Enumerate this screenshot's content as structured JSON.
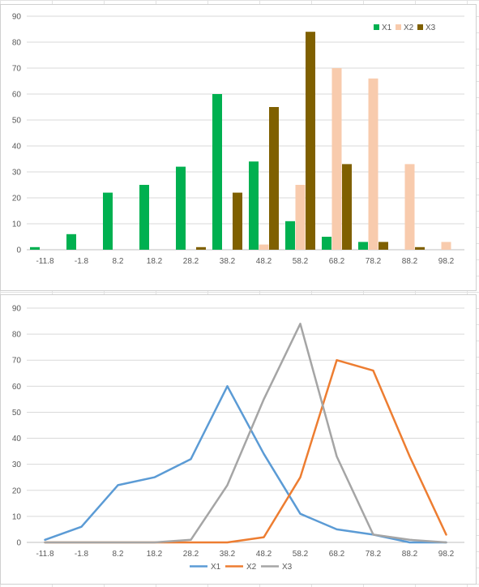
{
  "chart_data": [
    {
      "type": "bar",
      "categories": [
        "-11.8",
        "-1.8",
        "8.2",
        "18.2",
        "28.2",
        "38.2",
        "48.2",
        "58.2",
        "68.2",
        "78.2",
        "88.2",
        "98.2"
      ],
      "series": [
        {
          "name": "X1",
          "color": "#00b050",
          "values": [
            1,
            6,
            22,
            25,
            32,
            60,
            34,
            11,
            5,
            3,
            0,
            0
          ]
        },
        {
          "name": "X2",
          "color": "#f8cbad",
          "values": [
            0,
            0,
            0,
            0,
            0,
            0,
            2,
            25,
            70,
            66,
            33,
            3
          ]
        },
        {
          "name": "X3",
          "color": "#7f6000",
          "values": [
            0,
            0,
            0,
            0,
            1,
            22,
            55,
            84,
            33,
            3,
            1,
            0
          ]
        }
      ],
      "ylim": [
        0,
        90
      ],
      "yticks": [
        0,
        10,
        20,
        30,
        40,
        50,
        60,
        70,
        80,
        90
      ],
      "grid": true,
      "legend": "top-right"
    },
    {
      "type": "line",
      "categories": [
        "-11.8",
        "-1.8",
        "8.2",
        "18.2",
        "28.2",
        "38.2",
        "48.2",
        "58.2",
        "68.2",
        "78.2",
        "88.2",
        "98.2"
      ],
      "series": [
        {
          "name": "X1",
          "color": "#5b9bd5",
          "values": [
            1,
            6,
            22,
            25,
            32,
            60,
            34,
            11,
            5,
            3,
            0,
            0
          ]
        },
        {
          "name": "X2",
          "color": "#ed7d31",
          "values": [
            0,
            0,
            0,
            0,
            0,
            0,
            2,
            25,
            70,
            66,
            33,
            3
          ]
        },
        {
          "name": "X3",
          "color": "#a5a5a5",
          "values": [
            0,
            0,
            0,
            0,
            1,
            22,
            55,
            84,
            33,
            3,
            1,
            0
          ]
        }
      ],
      "ylim": [
        0,
        90
      ],
      "yticks": [
        0,
        10,
        20,
        30,
        40,
        50,
        60,
        70,
        80,
        90
      ],
      "grid": true,
      "legend": "bottom"
    }
  ]
}
